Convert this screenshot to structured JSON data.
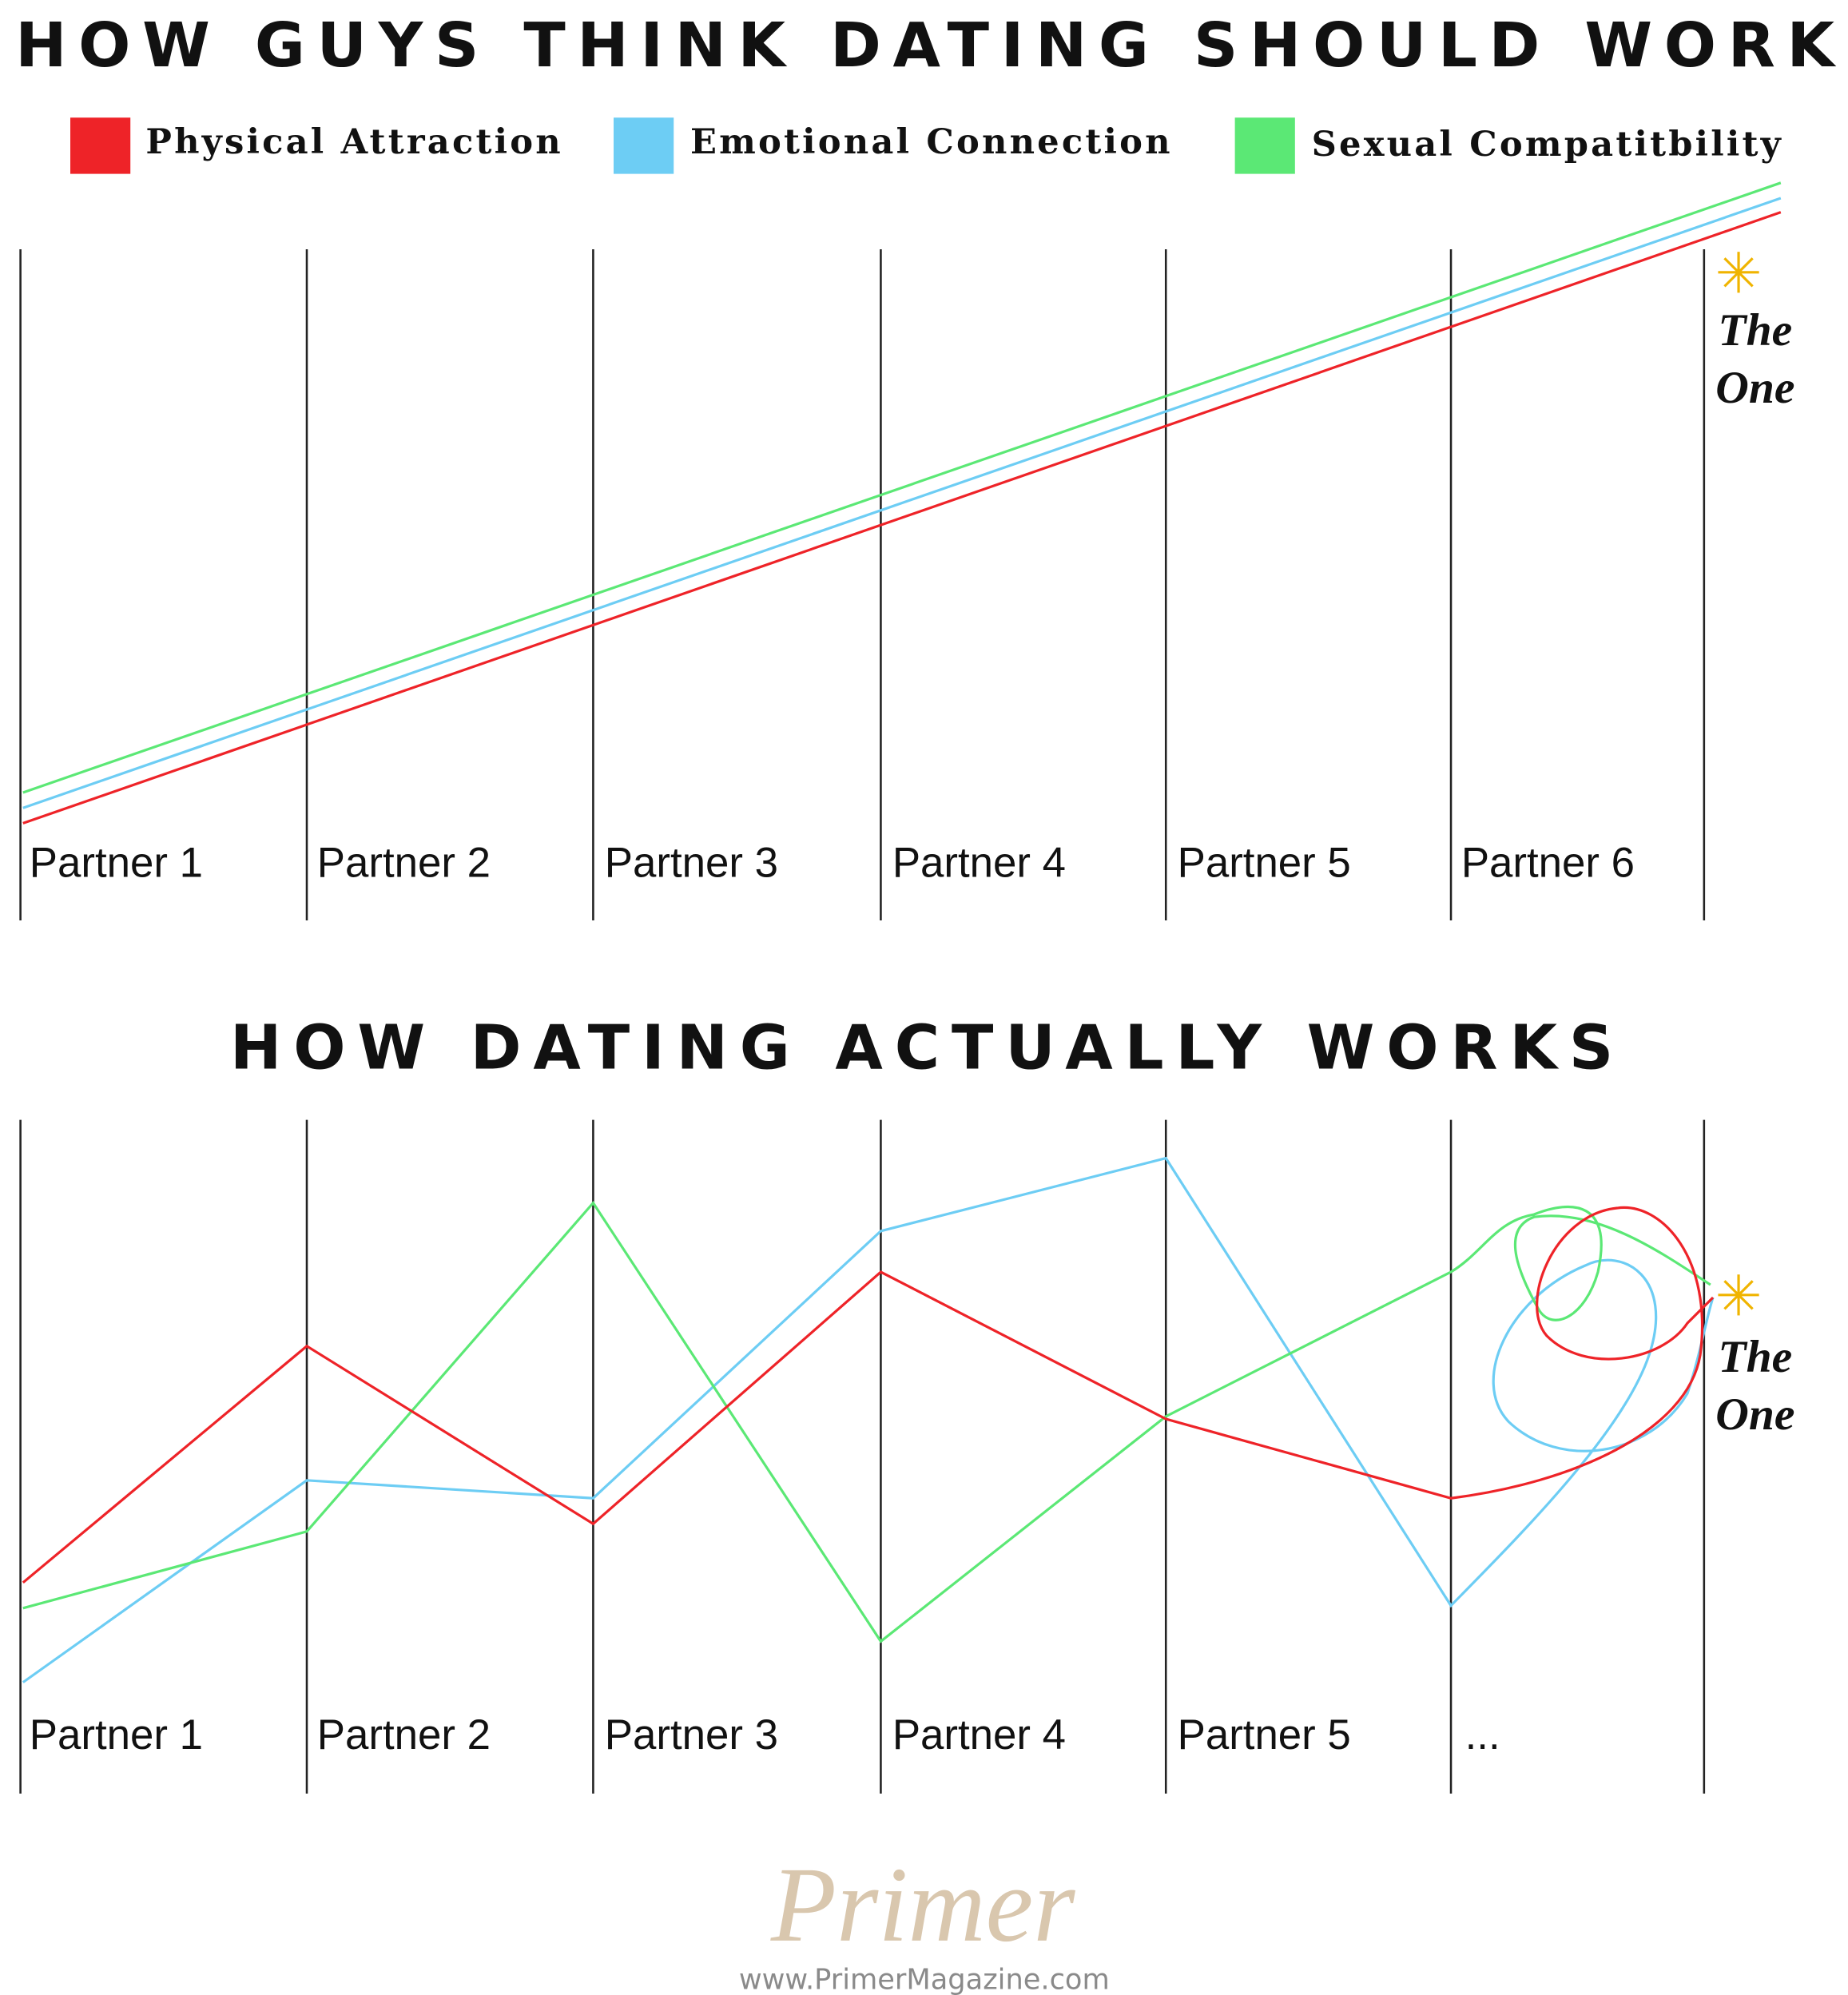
{
  "header": {
    "title": "HOW GUYS THINK DATING SHOULD WORK"
  },
  "legend": [
    "Physical Attraction",
    "Emotional Connection",
    "Sexual Compatitbility"
  ],
  "panel_1": {
    "labels": [
      "Partner 1",
      "Partner 2",
      "Partner 3",
      "Partner 4",
      "Partner 5",
      "Partner 6"
    ],
    "end_label": [
      "The",
      "One"
    ]
  },
  "panel_2": {
    "title": "HOW DATING ACTUALLY WORKS",
    "labels": [
      "Partner 1",
      "Partner 2",
      "Partner 3",
      "Partner 4",
      "Partner 5",
      "..."
    ],
    "end_label": [
      "The",
      "One"
    ]
  },
  "footer": {
    "brand": "Primer",
    "url": "www.PrimerMagazine.com"
  }
}
